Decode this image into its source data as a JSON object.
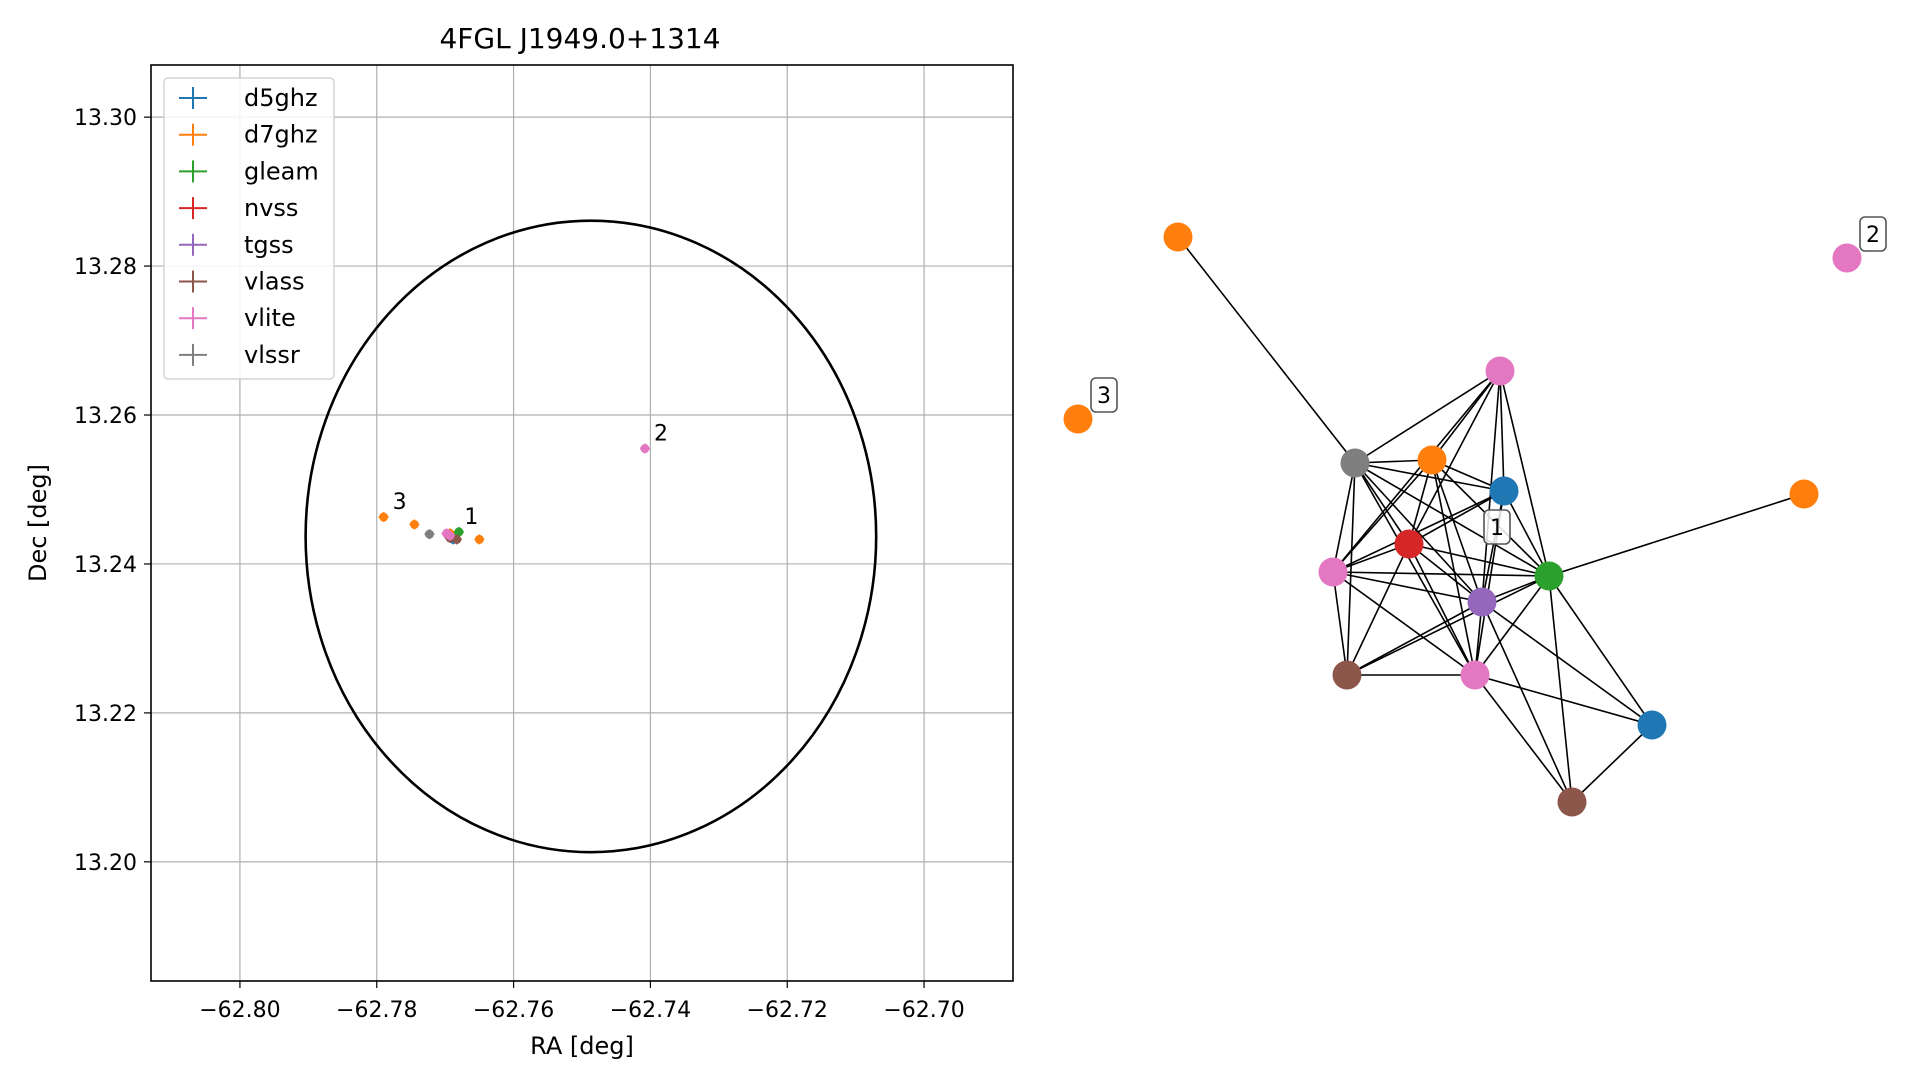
{
  "chart_data": [
    {
      "type": "scatter",
      "title": "4FGL J1949.0+1314",
      "xlabel": "RA [deg]",
      "ylabel": "Dec [deg]",
      "xlim": [
        -62.813,
        -62.687
      ],
      "ylim": [
        13.184,
        13.307
      ],
      "xticks": [
        -62.8,
        -62.78,
        -62.76,
        -62.74,
        -62.72,
        -62.7
      ],
      "xtick_labels": [
        "−62.80",
        "−62.78",
        "−62.76",
        "−62.74",
        "−62.72",
        "−62.70"
      ],
      "yticks": [
        13.2,
        13.22,
        13.24,
        13.26,
        13.28,
        13.3
      ],
      "ytick_labels": [
        "13.20",
        "13.22",
        "13.24",
        "13.26",
        "13.28",
        "13.30"
      ],
      "grid": true,
      "legend_position": "top-left",
      "ellipse": {
        "center": [
          -62.7487,
          13.2437
        ],
        "semi_axis_ra": 0.0417,
        "semi_axis_dec": 0.0424,
        "color": "#000000"
      },
      "series": [
        {
          "name": "d5ghz",
          "color": "#1f77b4",
          "points": [
            {
              "x": -62.7688,
              "y": 13.2433
            },
            {
              "x": -62.7692,
              "y": 13.244
            }
          ]
        },
        {
          "name": "d7ghz",
          "color": "#ff7f0e",
          "points": [
            {
              "x": -62.779,
              "y": 13.2463
            },
            {
              "x": -62.7745,
              "y": 13.2453
            },
            {
              "x": -62.765,
              "y": 13.2433
            },
            {
              "x": -62.7693,
              "y": 13.2441
            }
          ]
        },
        {
          "name": "gleam",
          "color": "#2ca02c",
          "points": [
            {
              "x": -62.768,
              "y": 13.2443
            }
          ]
        },
        {
          "name": "nvss",
          "color": "#d62728",
          "points": [
            {
              "x": -62.7697,
              "y": 13.244
            }
          ]
        },
        {
          "name": "tgss",
          "color": "#9467bd",
          "points": [
            {
              "x": -62.7695,
              "y": 13.2438
            }
          ]
        },
        {
          "name": "vlass",
          "color": "#8c564b",
          "points": [
            {
              "x": -62.7693,
              "y": 13.2435
            },
            {
              "x": -62.7683,
              "y": 13.2433
            }
          ]
        },
        {
          "name": "vlite",
          "color": "#e377c2",
          "points": [
            {
              "x": -62.7408,
              "y": 13.2555
            },
            {
              "x": -62.7698,
              "y": 13.2441
            },
            {
              "x": -62.7693,
              "y": 13.2438
            }
          ]
        },
        {
          "name": "vlssr",
          "color": "#7f7f7f",
          "points": [
            {
              "x": -62.7723,
              "y": 13.244
            }
          ]
        }
      ],
      "annotations": [
        {
          "text": "1",
          "x": -62.7685,
          "y": 13.2443
        },
        {
          "text": "2",
          "x": -62.7408,
          "y": 13.2555
        },
        {
          "text": "3",
          "x": -62.779,
          "y": 13.2463
        }
      ]
    },
    {
      "type": "network",
      "nodes": [
        {
          "id": "n_grey",
          "color": "#7f7f7f"
        },
        {
          "id": "n_orange_top",
          "color": "#ff7f0e"
        },
        {
          "id": "n_orange_3",
          "color": "#ff7f0e",
          "label": "3"
        },
        {
          "id": "n_pink_2",
          "color": "#e377c2",
          "label": "2"
        },
        {
          "id": "n_pink_top",
          "color": "#e377c2"
        },
        {
          "id": "n_orange_mid",
          "color": "#ff7f0e"
        },
        {
          "id": "n_blue_top",
          "color": "#1f77b4"
        },
        {
          "id": "n_red",
          "color": "#d62728"
        },
        {
          "id": "n_green",
          "color": "#2ca02c"
        },
        {
          "id": "n_orange_right",
          "color": "#ff7f0e"
        },
        {
          "id": "n_pink_left",
          "color": "#e377c2"
        },
        {
          "id": "n_purple",
          "color": "#9467bd"
        },
        {
          "id": "n_brown_left",
          "color": "#8c564b"
        },
        {
          "id": "n_pink_bottom",
          "color": "#e377c2"
        },
        {
          "id": "n_blue_bottom",
          "color": "#1f77b4"
        },
        {
          "id": "n_brown_bottom",
          "color": "#8c564b"
        }
      ],
      "cluster_label": {
        "text": "1"
      },
      "edges": [
        [
          "n_orange_top",
          "n_grey"
        ],
        [
          "n_grey",
          "n_pink_top"
        ],
        [
          "n_grey",
          "n_orange_mid"
        ],
        [
          "n_grey",
          "n_blue_top"
        ],
        [
          "n_grey",
          "n_red"
        ],
        [
          "n_grey",
          "n_green"
        ],
        [
          "n_grey",
          "n_purple"
        ],
        [
          "n_grey",
          "n_pink_left"
        ],
        [
          "n_grey",
          "n_brown_left"
        ],
        [
          "n_grey",
          "n_pink_bottom"
        ],
        [
          "n_orange_mid",
          "n_red"
        ],
        [
          "n_orange_mid",
          "n_pink_left"
        ],
        [
          "n_orange_mid",
          "n_purple"
        ],
        [
          "n_orange_mid",
          "n_green"
        ],
        [
          "n_orange_mid",
          "n_blue_top"
        ],
        [
          "n_orange_mid",
          "n_pink_bottom"
        ],
        [
          "n_orange_mid",
          "n_pink_top"
        ],
        [
          "n_pink_top",
          "n_red"
        ],
        [
          "n_pink_top",
          "n_green"
        ],
        [
          "n_pink_top",
          "n_purple"
        ],
        [
          "n_pink_top",
          "n_pink_left"
        ],
        [
          "n_pink_top",
          "n_blue_top"
        ],
        [
          "n_blue_top",
          "n_red"
        ],
        [
          "n_blue_top",
          "n_green"
        ],
        [
          "n_blue_top",
          "n_purple"
        ],
        [
          "n_blue_top",
          "n_pink_left"
        ],
        [
          "n_blue_top",
          "n_pink_bottom"
        ],
        [
          "n_red",
          "n_pink_left"
        ],
        [
          "n_red",
          "n_green"
        ],
        [
          "n_red",
          "n_purple"
        ],
        [
          "n_red",
          "n_brown_left"
        ],
        [
          "n_red",
          "n_pink_bottom"
        ],
        [
          "n_pink_left",
          "n_green"
        ],
        [
          "n_pink_left",
          "n_purple"
        ],
        [
          "n_pink_left",
          "n_brown_left"
        ],
        [
          "n_pink_left",
          "n_pink_bottom"
        ],
        [
          "n_green",
          "n_purple"
        ],
        [
          "n_green",
          "n_orange_right"
        ],
        [
          "n_green",
          "n_brown_left"
        ],
        [
          "n_green",
          "n_pink_bottom"
        ],
        [
          "n_green",
          "n_blue_bottom"
        ],
        [
          "n_green",
          "n_brown_bottom"
        ],
        [
          "n_purple",
          "n_brown_left"
        ],
        [
          "n_purple",
          "n_pink_bottom"
        ],
        [
          "n_purple",
          "n_blue_bottom"
        ],
        [
          "n_purple",
          "n_brown_bottom"
        ],
        [
          "n_brown_left",
          "n_pink_bottom"
        ],
        [
          "n_pink_bottom",
          "n_blue_bottom"
        ],
        [
          "n_pink_bottom",
          "n_brown_bottom"
        ],
        [
          "n_blue_bottom",
          "n_brown_bottom"
        ]
      ]
    }
  ]
}
